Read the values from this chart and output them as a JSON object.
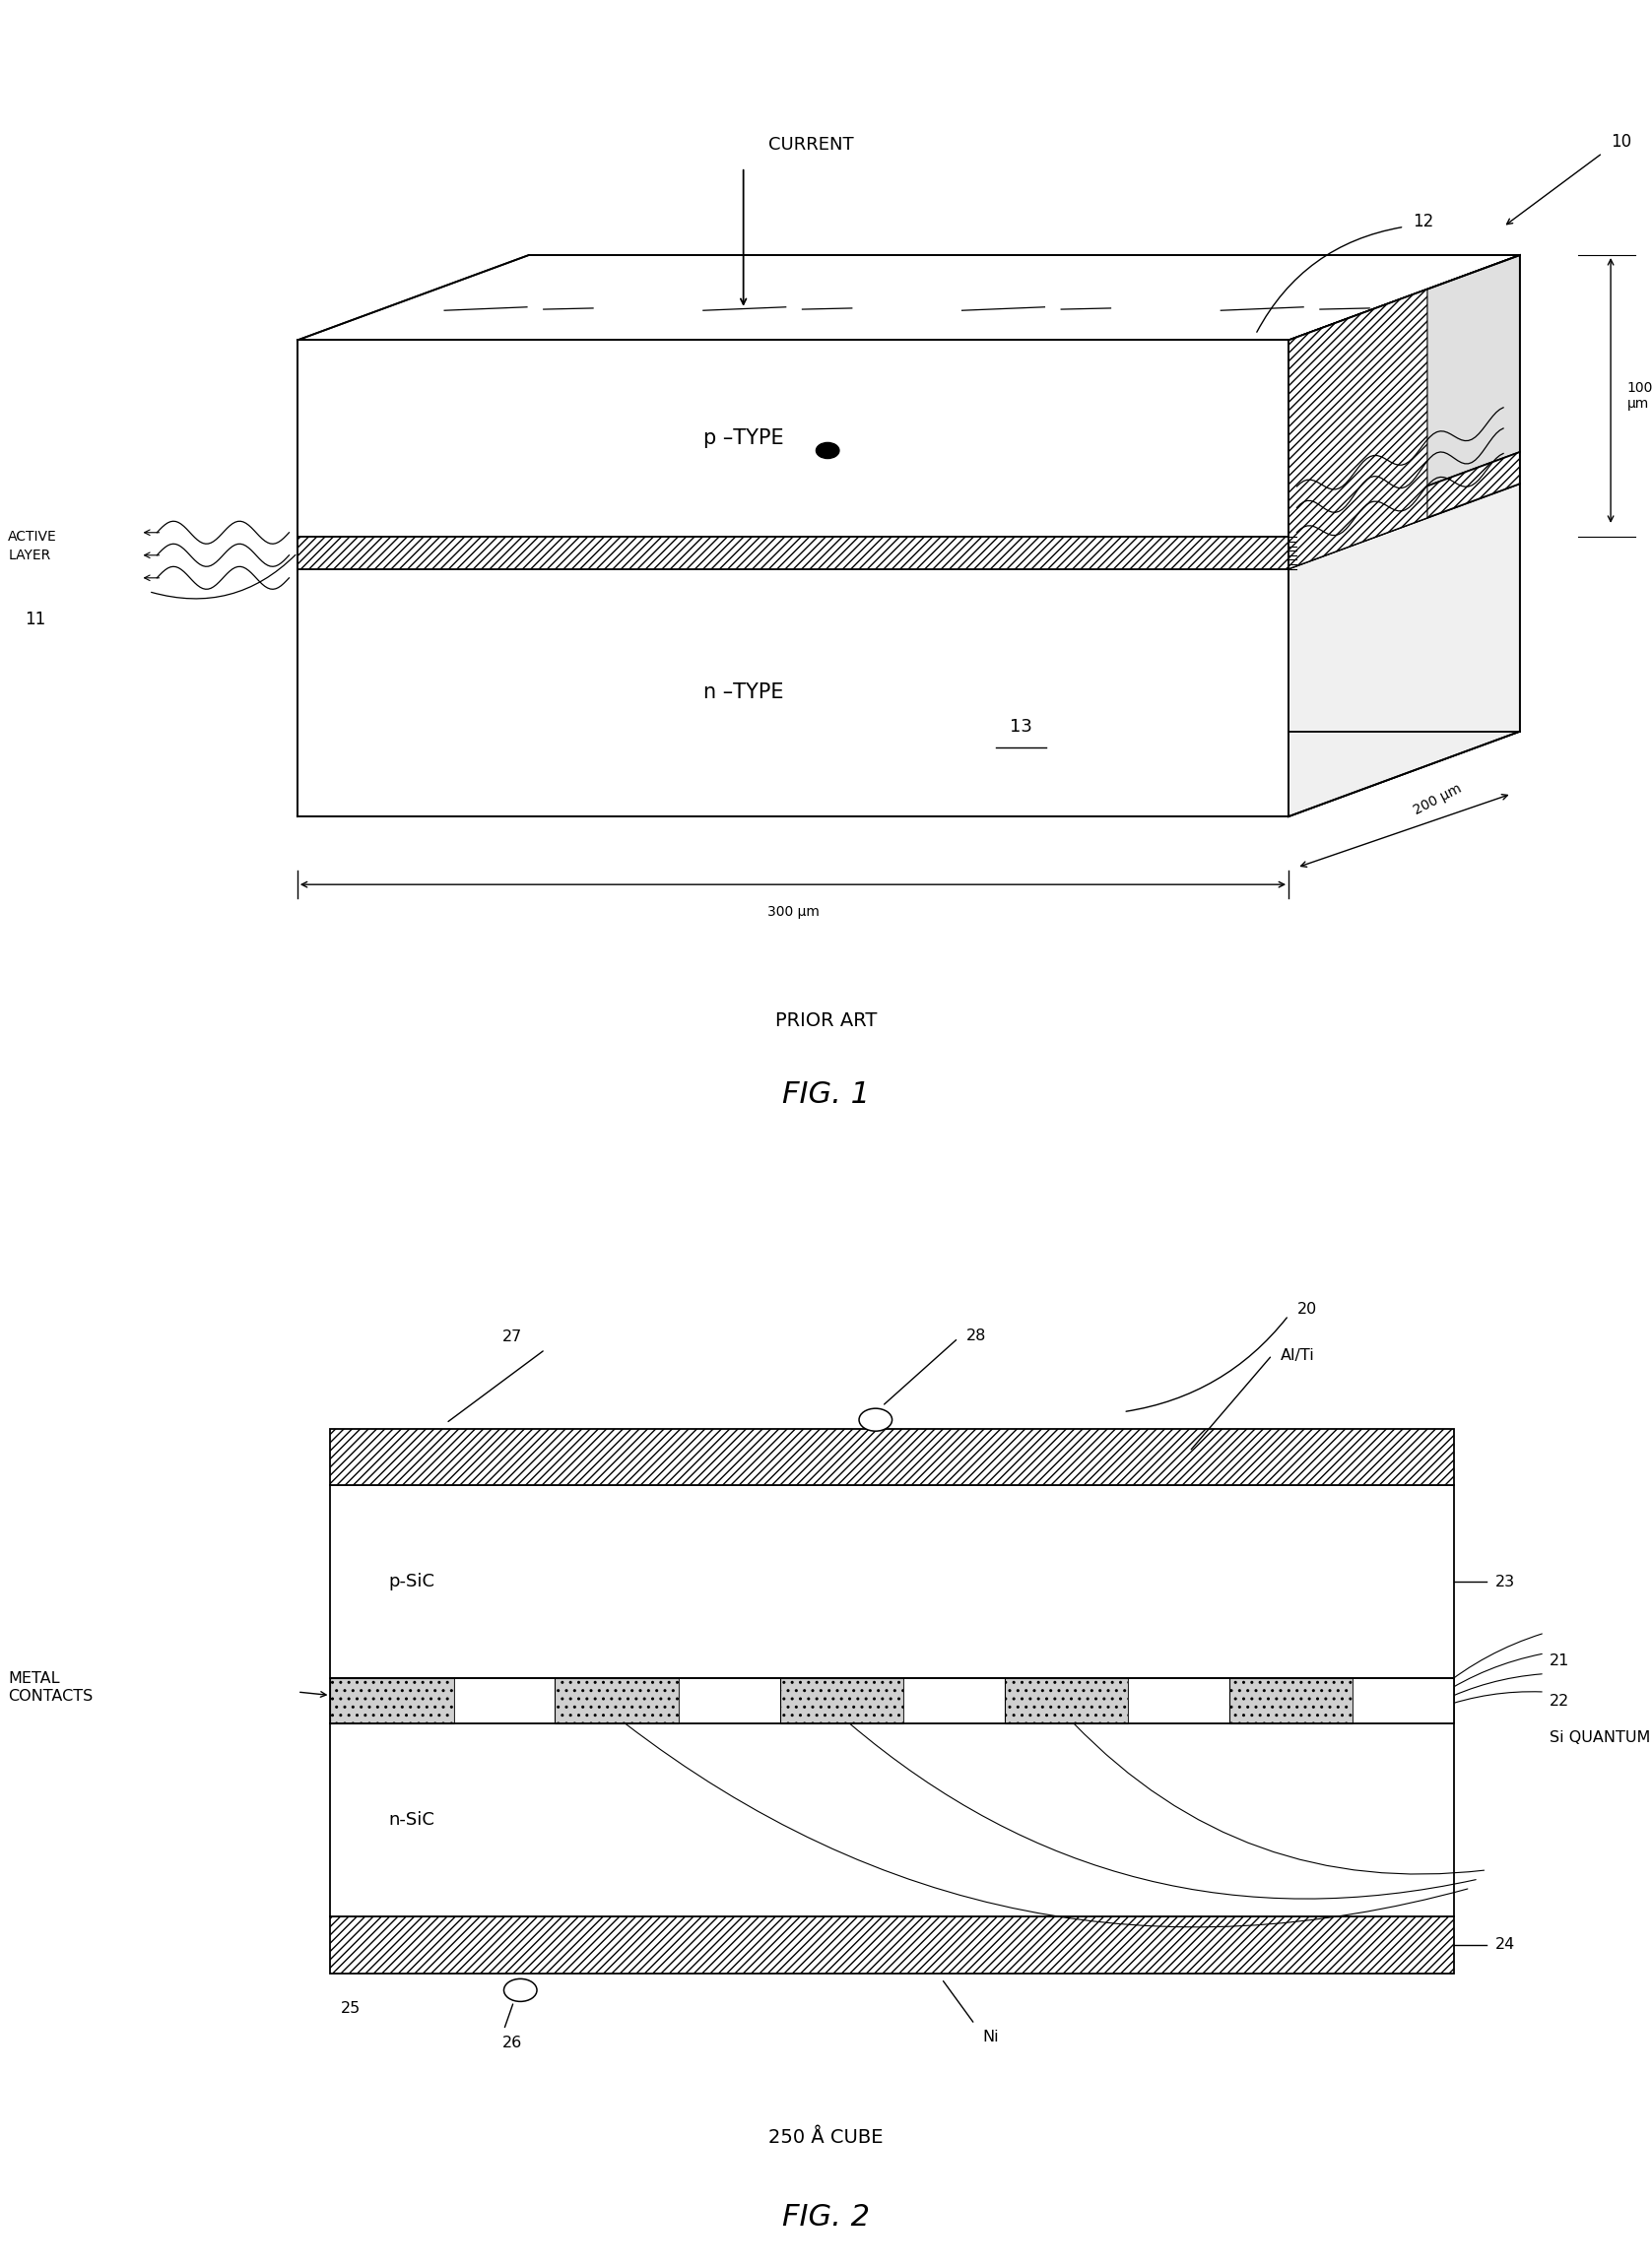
{
  "bg_color": "#ffffff",
  "fig1": {
    "title": "PRIOR ART",
    "fig_label": "FIG. 1",
    "label_10": "10",
    "label_12": "12",
    "label_13": "13",
    "label_11": "11",
    "text_ptype": "p –TYPE",
    "text_ntype": "n –TYPE",
    "text_current": "CURRENT",
    "text_active": "ACTIVE\nLAYER",
    "text_100um": "100\nμm",
    "text_200um": "200 μm",
    "text_300um": "300 μm"
  },
  "fig2": {
    "title": "250 Å CUBE",
    "fig_label": "FIG. 2",
    "label_20": "20",
    "label_21": "21",
    "label_22": "22",
    "label_23": "23",
    "label_24": "24",
    "label_25": "25",
    "label_26": "26",
    "label_27": "27",
    "label_28": "28",
    "text_psic": "p-SiC",
    "text_nsic": "n-SiC",
    "text_alti": "Al/Ti",
    "text_ni": "Ni",
    "text_metal": "METAL\nCONTACTS",
    "text_sqd": "Si QUANTUM DOTS"
  }
}
